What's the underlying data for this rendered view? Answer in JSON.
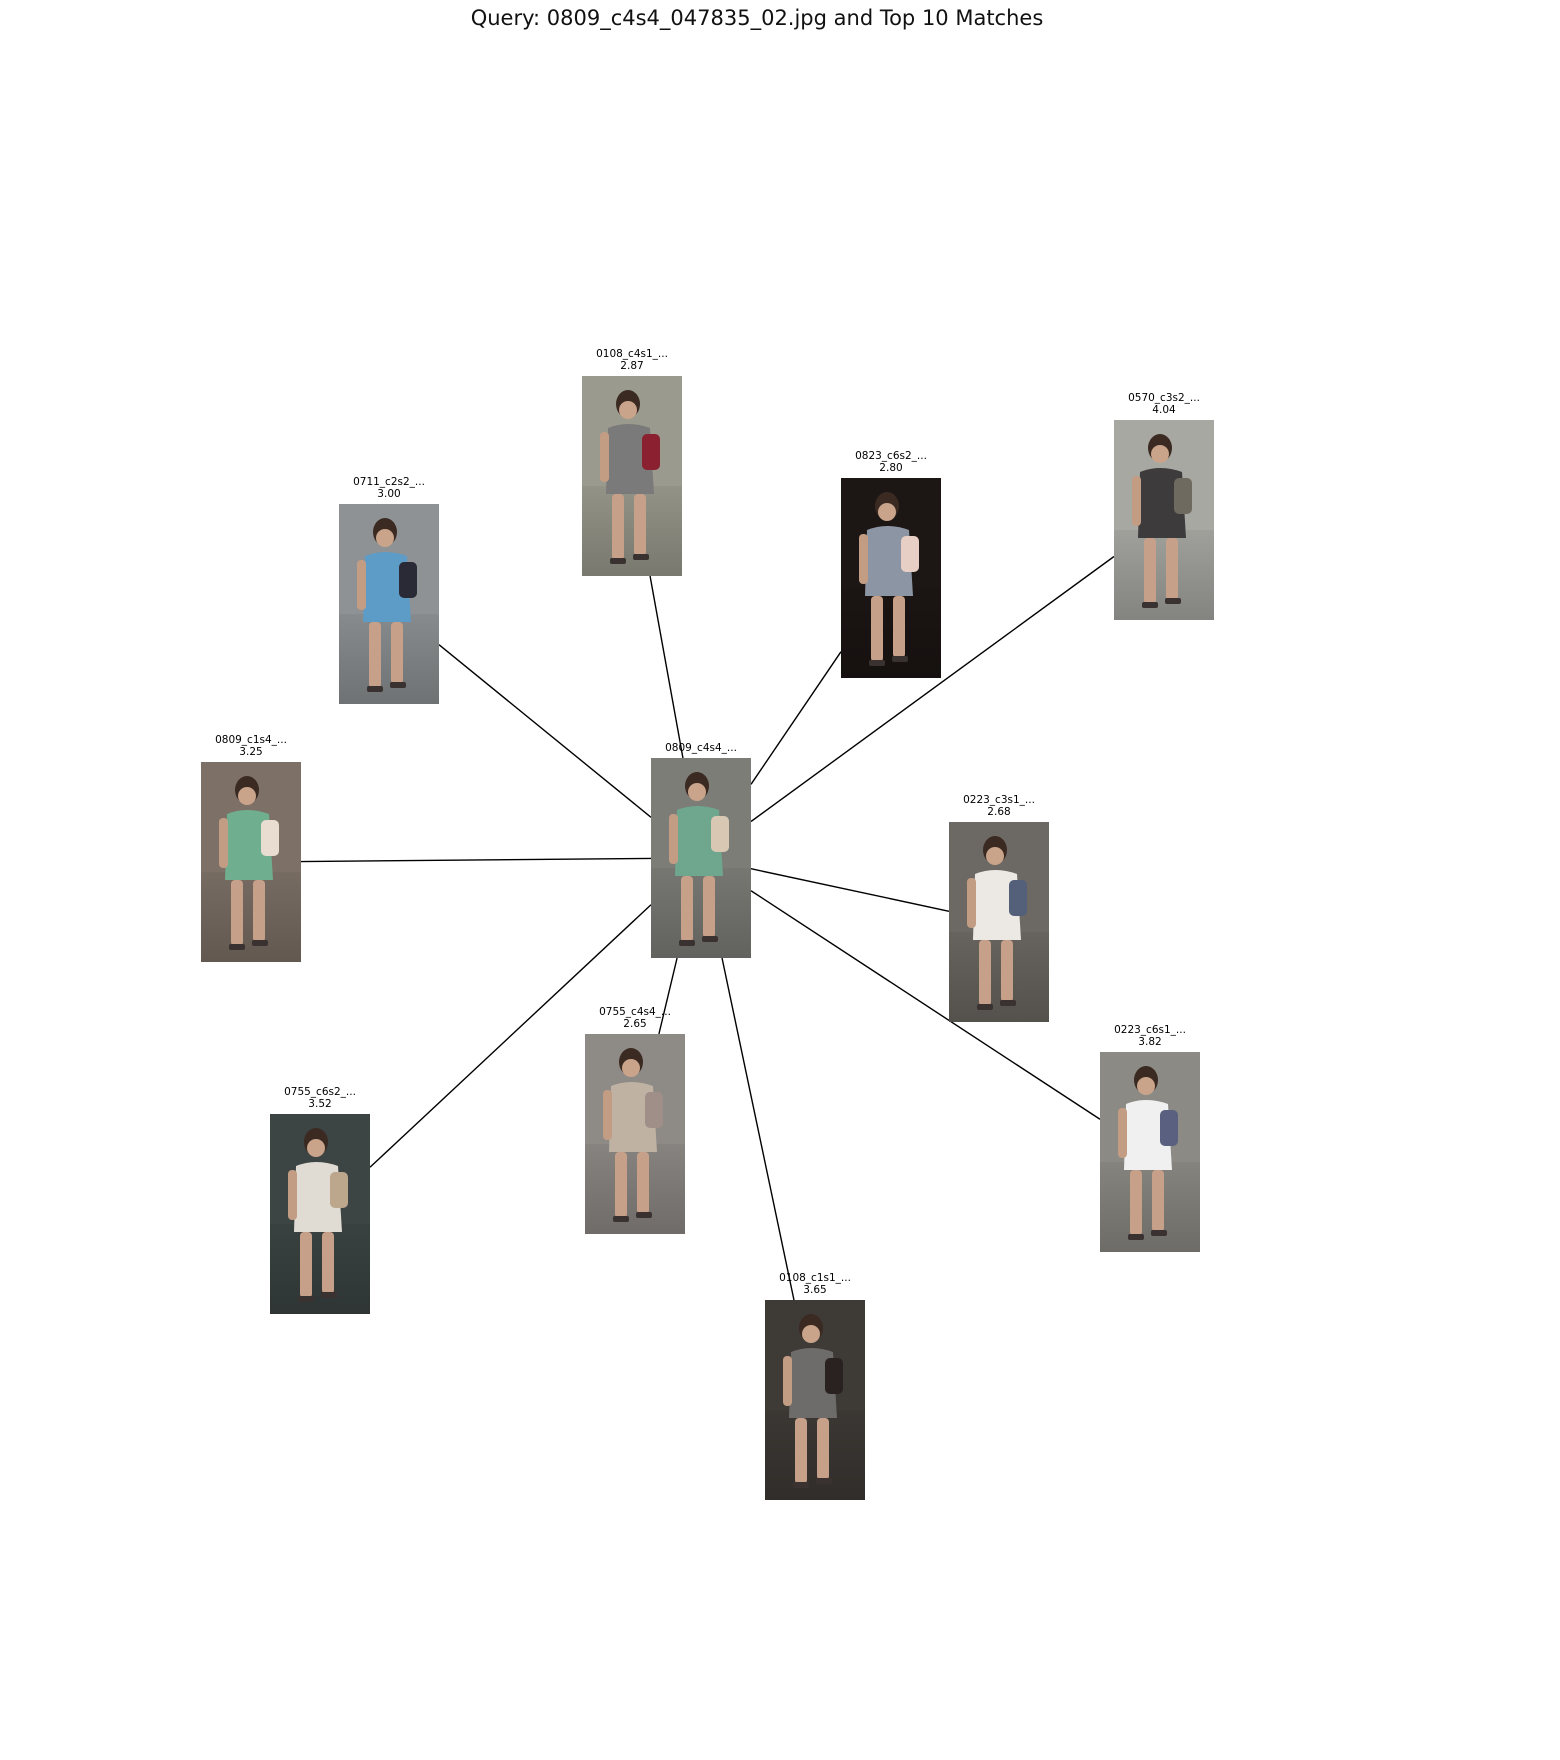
{
  "title": "Query: 0809_c4s4_047835_02.jpg and Top 10 Matches",
  "query": {
    "label": "0809_c4s4_...",
    "image": {
      "bg": "#7d7d78",
      "figure": "#6fa68e",
      "accent": "#d8c7b2"
    }
  },
  "matches": [
    {
      "label": "0108_c4s1_...",
      "score": "2.87",
      "image": {
        "bg": "#9a9a8e",
        "figure": "#7a7a7a",
        "accent": "#8a2030"
      }
    },
    {
      "label": "0823_c6s2_...",
      "score": "2.80",
      "image": {
        "bg": "#1c1614",
        "figure": "#8c95a4",
        "accent": "#e7cfc5"
      }
    },
    {
      "label": "0570_c3s2_...",
      "score": "4.04",
      "image": {
        "bg": "#a8a8a3",
        "figure": "#3d3b3b",
        "accent": "#6e6a60"
      }
    },
    {
      "label": "0711_c2s2_...",
      "score": "3.00",
      "image": {
        "bg": "#8e9294",
        "figure": "#5e9cc8",
        "accent": "#2a2a36"
      }
    },
    {
      "label": "0809_c1s4_...",
      "score": "3.25",
      "image": {
        "bg": "#7d7167",
        "figure": "#6fae8e",
        "accent": "#e8ddd0"
      }
    },
    {
      "label": "0223_c3s1_...",
      "score": "2.68",
      "image": {
        "bg": "#6c6863",
        "figure": "#ece9e5",
        "accent": "#54607a"
      }
    },
    {
      "label": "0755_c4s4_...",
      "score": "2.65",
      "image": {
        "bg": "#8e8a86",
        "figure": "#bfb2a2",
        "accent": "#9f8f88"
      }
    },
    {
      "label": "0223_c6s1_...",
      "score": "3.82",
      "image": {
        "bg": "#8c8a84",
        "figure": "#f0f0f0",
        "accent": "#5a6080"
      }
    },
    {
      "label": "0755_c6s2_...",
      "score": "3.52",
      "image": {
        "bg": "#3c4444",
        "figure": "#e0dcd4",
        "accent": "#bca68c"
      }
    },
    {
      "label": "0108_c1s1_...",
      "score": "3.65",
      "image": {
        "bg": "#3e3a36",
        "figure": "#6e6c6a",
        "accent": "#2a2220"
      }
    }
  ]
}
